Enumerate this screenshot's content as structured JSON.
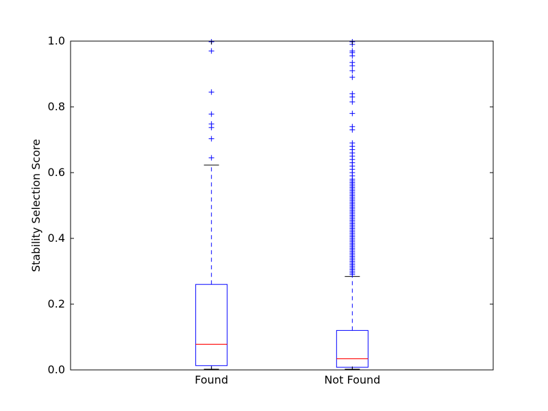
{
  "chart_data": {
    "type": "box",
    "title": "",
    "xlabel": "",
    "ylabel": "Stability Selection Score",
    "ylim": [
      0.0,
      1.0
    ],
    "yticks": [
      0.0,
      0.2,
      0.4,
      0.6,
      0.8,
      1.0
    ],
    "ytick_labels": [
      "0.0",
      "0.2",
      "0.4",
      "0.6",
      "0.8",
      "1.0"
    ],
    "grid": false,
    "legend": "none",
    "colors": {
      "box": "#0000ff",
      "median": "#ff0000",
      "whisker": "#0000ff",
      "cap": "#000000",
      "flier": "#0000ff",
      "frame": "#000000"
    },
    "categories": [
      "Found",
      "Not Found"
    ],
    "boxes": [
      {
        "category": "Found",
        "whisker_low": 0.002,
        "q1": 0.013,
        "median": 0.078,
        "q3": 0.26,
        "whisker_high": 0.623,
        "outliers": [
          0.645,
          0.703,
          0.737,
          0.748,
          0.778,
          0.845,
          0.97,
          0.998
        ]
      },
      {
        "category": "Not Found",
        "whisker_low": 0.002,
        "q1": 0.008,
        "median": 0.034,
        "q3": 0.12,
        "whisker_high": 0.284,
        "outliers": [
          0.29,
          0.295,
          0.3,
          0.305,
          0.31,
          0.315,
          0.32,
          0.325,
          0.33,
          0.335,
          0.34,
          0.345,
          0.35,
          0.355,
          0.36,
          0.365,
          0.37,
          0.375,
          0.38,
          0.385,
          0.39,
          0.395,
          0.4,
          0.405,
          0.41,
          0.415,
          0.42,
          0.425,
          0.43,
          0.435,
          0.44,
          0.445,
          0.45,
          0.455,
          0.46,
          0.465,
          0.47,
          0.475,
          0.48,
          0.485,
          0.49,
          0.495,
          0.5,
          0.505,
          0.51,
          0.515,
          0.52,
          0.525,
          0.53,
          0.535,
          0.54,
          0.545,
          0.55,
          0.555,
          0.56,
          0.565,
          0.57,
          0.575,
          0.58,
          0.59,
          0.6,
          0.61,
          0.62,
          0.63,
          0.64,
          0.65,
          0.66,
          0.67,
          0.68,
          0.69,
          0.73,
          0.74,
          0.78,
          0.815,
          0.83,
          0.84,
          0.89,
          0.91,
          0.925,
          0.935,
          0.955,
          0.965,
          0.97,
          0.99,
          0.998
        ]
      }
    ]
  }
}
